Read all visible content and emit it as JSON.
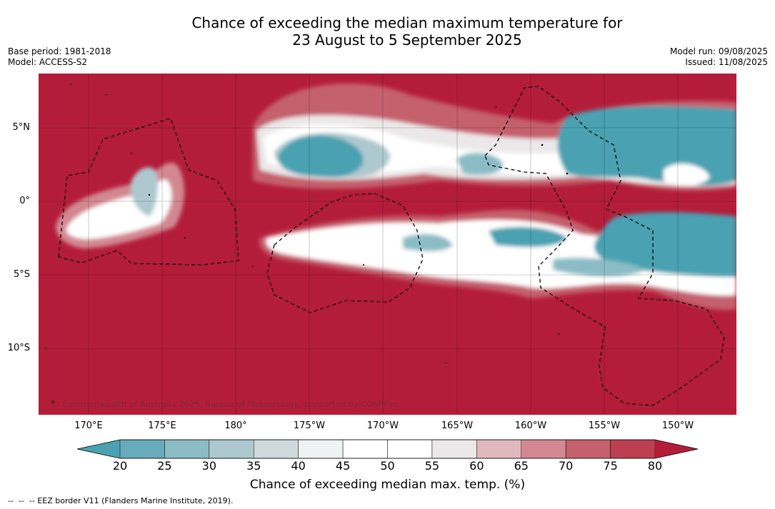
{
  "title_line1": "Chance of exceeding the median maximum temperature for",
  "title_line2": "23 August to 5 September 2025",
  "base_period": "Base period: 1981-2018",
  "model": "Model: ACCESS-S2",
  "model_run": "Model run: 09/08/2025",
  "issued": "Issued: 11/08/2025",
  "lat_labels": [
    "5°N",
    "0°",
    "5°S",
    "10°S"
  ],
  "lon_labels": [
    "170°E",
    "175°E",
    "180°",
    "175°W",
    "170°W",
    "165°W",
    "160°W",
    "155°W",
    "150°W"
  ],
  "colorbar": {
    "ticks": [
      "20",
      "25",
      "30",
      "35",
      "40",
      "45",
      "50",
      "55",
      "60",
      "65",
      "70",
      "75",
      "80"
    ],
    "label": "Chance of exceeding median max. temp. (%)",
    "colors": [
      "#4aa1b1",
      "#68abba",
      "#8bbcc6",
      "#adc8cf",
      "#d0dadd",
      "#eef2f3",
      "#ffffff",
      "#ffffff",
      "#ebe8e9",
      "#e2b8bf",
      "#d38891",
      "#c5606d",
      "#bd3f50",
      "#b41d39"
    ]
  },
  "copyright": "© Commonwealth of Australia 2025, Bureau of Meteorology, supported by COSPPac",
  "footer": "EEZ border V11 (Flanders Marine Institute, 2019)."
}
